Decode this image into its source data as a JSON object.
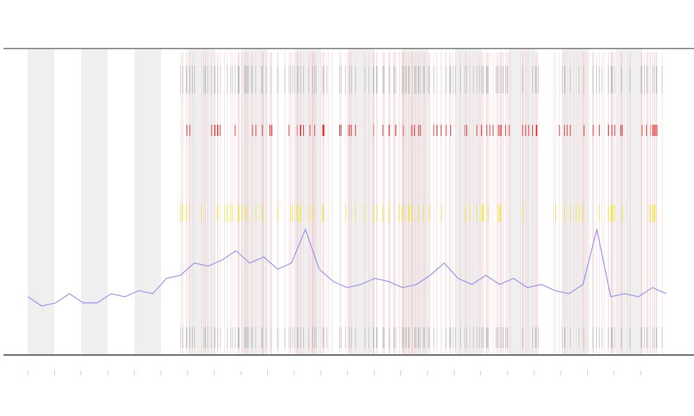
{
  "chart_data": {
    "type": "line",
    "color": "#8a8af0",
    "values": [
      19,
      16,
      17,
      20,
      17,
      17,
      20,
      19,
      21,
      20,
      25,
      26,
      30,
      29,
      31,
      34,
      30,
      32,
      28,
      30,
      41,
      28,
      24,
      22,
      23,
      25,
      24,
      22,
      23,
      26,
      30,
      25,
      23,
      26,
      23,
      25,
      22,
      23,
      21,
      20,
      23,
      41,
      19,
      20,
      19,
      22,
      20
    ],
    "ylim": [
      0,
      100
    ]
  }
}
